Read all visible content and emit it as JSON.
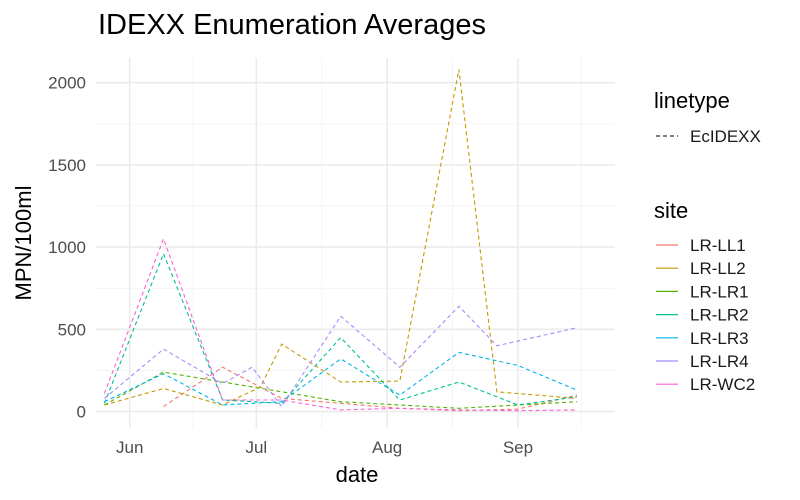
{
  "chart_data": {
    "type": "line",
    "title": "IDEXX Enumeration Averages",
    "xlabel": "date",
    "ylabel": "MPN/100ml",
    "x_ticks": [
      "Jun",
      "Jul",
      "Aug",
      "Sep"
    ],
    "x_tick_dates": [
      "2021-06-01",
      "2021-07-01",
      "2021-08-01",
      "2021-09-01"
    ],
    "xlim": [
      "2021-05-24",
      "2021-09-24"
    ],
    "y_ticks": [
      0,
      500,
      1000,
      1500,
      2000
    ],
    "ylim": [
      -100,
      2150
    ],
    "grid": true,
    "legend_position": "right",
    "linetype_legend": {
      "title": "linetype",
      "entries": [
        "EcIDEXX"
      ]
    },
    "site_legend": {
      "title": "site"
    },
    "series": [
      {
        "name": "LR-LL1",
        "color": "#F8766D",
        "points": [
          [
            "2021-06-09",
            30
          ],
          [
            "2021-06-23",
            270
          ],
          [
            "2021-07-07",
            80
          ],
          [
            "2021-07-21",
            50
          ],
          [
            "2021-08-04",
            20
          ],
          [
            "2021-08-18",
            5
          ],
          [
            "2021-09-01",
            15
          ],
          [
            "2021-09-15",
            100
          ]
        ]
      },
      {
        "name": "LR-LL2",
        "color": "#C49A00",
        "points": [
          [
            "2021-05-26",
            40
          ],
          [
            "2021-06-09",
            140
          ],
          [
            "2021-06-23",
            40
          ],
          [
            "2021-07-02",
            150
          ],
          [
            "2021-07-07",
            410
          ],
          [
            "2021-07-21",
            180
          ],
          [
            "2021-08-04",
            185
          ],
          [
            "2021-08-18",
            2080
          ],
          [
            "2021-08-27",
            120
          ],
          [
            "2021-09-15",
            80
          ]
        ]
      },
      {
        "name": "LR-LR1",
        "color": "#53B400",
        "points": [
          [
            "2021-05-26",
            40
          ],
          [
            "2021-06-09",
            240
          ],
          [
            "2021-06-23",
            180
          ],
          [
            "2021-07-07",
            120
          ],
          [
            "2021-07-21",
            60
          ],
          [
            "2021-08-04",
            40
          ],
          [
            "2021-08-18",
            20
          ],
          [
            "2021-09-01",
            40
          ],
          [
            "2021-09-15",
            60
          ]
        ]
      },
      {
        "name": "LR-LR2",
        "color": "#00C094",
        "points": [
          [
            "2021-05-26",
            50
          ],
          [
            "2021-06-09",
            960
          ],
          [
            "2021-06-23",
            70
          ],
          [
            "2021-07-07",
            50
          ],
          [
            "2021-07-21",
            450
          ],
          [
            "2021-08-04",
            70
          ],
          [
            "2021-08-18",
            180
          ],
          [
            "2021-09-01",
            40
          ],
          [
            "2021-09-15",
            90
          ]
        ]
      },
      {
        "name": "LR-LR3",
        "color": "#00B6EB",
        "points": [
          [
            "2021-05-26",
            60
          ],
          [
            "2021-06-09",
            230
          ],
          [
            "2021-06-23",
            40
          ],
          [
            "2021-07-07",
            60
          ],
          [
            "2021-07-21",
            320
          ],
          [
            "2021-08-04",
            100
          ],
          [
            "2021-08-18",
            360
          ],
          [
            "2021-09-01",
            280
          ],
          [
            "2021-09-15",
            130
          ]
        ]
      },
      {
        "name": "LR-LR4",
        "color": "#A58AFF",
        "points": [
          [
            "2021-05-26",
            80
          ],
          [
            "2021-06-09",
            380
          ],
          [
            "2021-06-23",
            170
          ],
          [
            "2021-06-30",
            270
          ],
          [
            "2021-07-07",
            30
          ],
          [
            "2021-07-21",
            580
          ],
          [
            "2021-08-04",
            270
          ],
          [
            "2021-08-18",
            640
          ],
          [
            "2021-08-27",
            400
          ],
          [
            "2021-09-15",
            510
          ]
        ]
      },
      {
        "name": "LR-WC2",
        "color": "#FB61D7",
        "points": [
          [
            "2021-05-26",
            110
          ],
          [
            "2021-06-09",
            1050
          ],
          [
            "2021-06-23",
            70
          ],
          [
            "2021-07-07",
            70
          ],
          [
            "2021-07-21",
            10
          ],
          [
            "2021-08-04",
            20
          ],
          [
            "2021-08-18",
            10
          ],
          [
            "2021-09-01",
            5
          ],
          [
            "2021-09-15",
            10
          ]
        ]
      }
    ]
  }
}
